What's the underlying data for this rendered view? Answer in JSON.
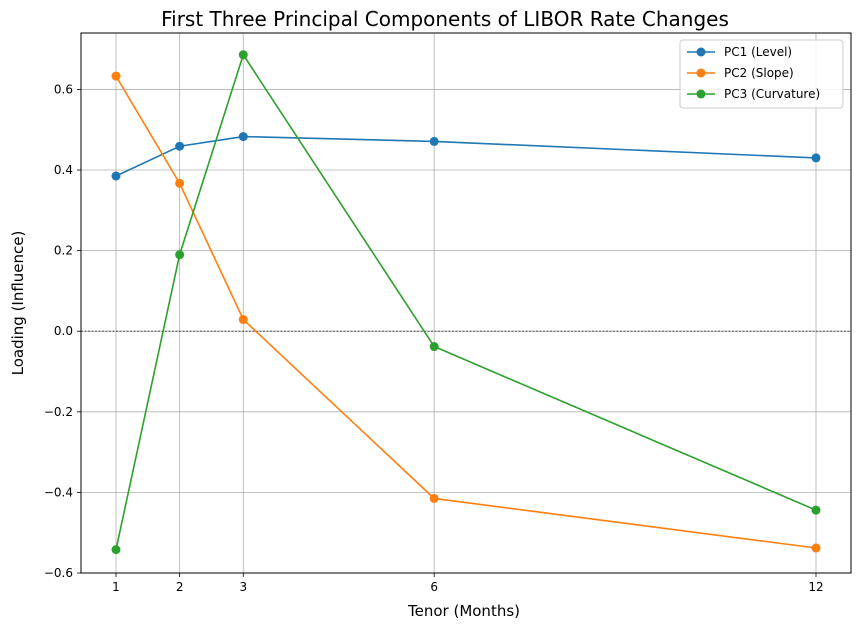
{
  "chart_data": {
    "type": "line",
    "title": "First Three Principal Components of LIBOR Rate Changes",
    "xlabel": "Tenor (Months)",
    "ylabel": "Loading (Influence)",
    "x": [
      1,
      2,
      3,
      6,
      12
    ],
    "x_tick_labels": [
      "1",
      "2",
      "3",
      "6",
      "12"
    ],
    "xlim": [
      0.45,
      12.55
    ],
    "ylim": [
      -0.6,
      0.74
    ],
    "y_ticks": [
      -0.6,
      -0.4,
      -0.2,
      0.0,
      0.2,
      0.4,
      0.6
    ],
    "y_tick_labels": [
      "−0.6",
      "−0.4",
      "−0.2",
      "0.0",
      "0.2",
      "0.4",
      "0.6"
    ],
    "grid": true,
    "reference_line_y": 0,
    "legend_position": "top-right",
    "series": [
      {
        "name": "PC1 (Level)",
        "color": "#1f77b4",
        "values": [
          0.385,
          0.459,
          0.483,
          0.471,
          0.43
        ]
      },
      {
        "name": "PC2 (Slope)",
        "color": "#ff7f0e",
        "values": [
          0.633,
          0.367,
          0.029,
          -0.415,
          -0.538
        ]
      },
      {
        "name": "PC3 (Curvature)",
        "color": "#2ca02c",
        "values": [
          -0.542,
          0.19,
          0.686,
          -0.038,
          -0.444
        ]
      }
    ]
  }
}
